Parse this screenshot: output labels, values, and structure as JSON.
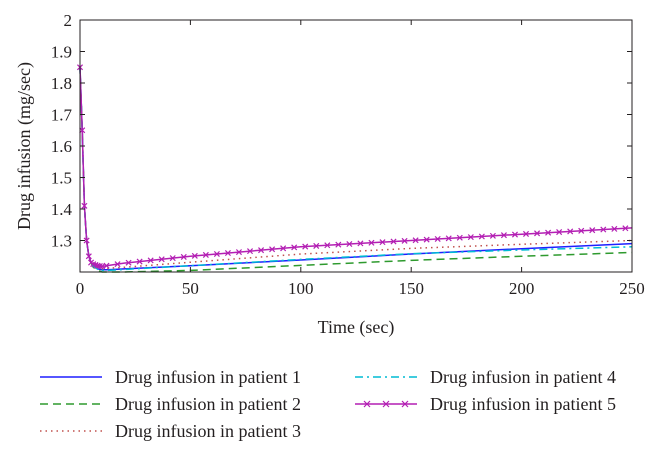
{
  "chart_data": {
    "type": "line",
    "title": "",
    "xlabel": "Time (sec)",
    "ylabel": "Drug infusion (mg/sec)",
    "xlim": [
      0,
      250
    ],
    "ylim": [
      1.2,
      2.0
    ],
    "xticks": [
      "0",
      "50",
      "100",
      "150",
      "200",
      "250"
    ],
    "yticks": [
      "1.3",
      "1.4",
      "1.5",
      "1.6",
      "1.7",
      "1.8",
      "1.9",
      "2"
    ],
    "grid": false,
    "legend_position": "bottom",
    "series": [
      {
        "name": "Drug infusion in patient 1",
        "color": "#1f1fff",
        "style": "solid",
        "x": [
          0,
          1,
          2,
          3,
          4,
          5,
          6,
          8,
          10,
          12,
          15,
          20,
          50,
          100,
          150,
          200,
          250
        ],
        "y": [
          1.85,
          1.65,
          1.41,
          1.3,
          1.25,
          1.23,
          1.22,
          1.21,
          1.207,
          1.207,
          1.208,
          1.21,
          1.22,
          1.238,
          1.257,
          1.274,
          1.29
        ]
      },
      {
        "name": "Drug infusion in patient 2",
        "color": "#2e9a2e",
        "style": "dashed",
        "x": [
          0,
          1,
          2,
          3,
          4,
          5,
          6,
          8,
          10,
          12,
          15,
          20,
          50,
          100,
          150,
          200,
          250
        ],
        "y": [
          1.85,
          1.65,
          1.41,
          1.3,
          1.25,
          1.23,
          1.215,
          1.205,
          1.2,
          1.2,
          1.2,
          1.2,
          1.205,
          1.221,
          1.237,
          1.25,
          1.262
        ]
      },
      {
        "name": "Drug infusion in patient 3",
        "color": "#c0504d",
        "style": "dotted",
        "x": [
          0,
          1,
          2,
          3,
          4,
          5,
          6,
          8,
          10,
          12,
          15,
          20,
          50,
          100,
          150,
          200,
          250
        ],
        "y": [
          1.85,
          1.65,
          1.41,
          1.3,
          1.25,
          1.23,
          1.22,
          1.212,
          1.21,
          1.211,
          1.213,
          1.215,
          1.231,
          1.257,
          1.275,
          1.288,
          1.3
        ]
      },
      {
        "name": "Drug infusion in patient 4",
        "color": "#00bcd4",
        "style": "dashdot",
        "x": [
          0,
          1,
          2,
          3,
          4,
          5,
          6,
          8,
          10,
          12,
          15,
          20,
          50,
          100,
          150,
          200,
          250
        ],
        "y": [
          1.85,
          1.65,
          1.41,
          1.3,
          1.25,
          1.23,
          1.218,
          1.209,
          1.205,
          1.205,
          1.206,
          1.208,
          1.22,
          1.24,
          1.258,
          1.27,
          1.28
        ]
      },
      {
        "name": "Drug infusion in patient 5",
        "color": "#b31fb3",
        "style": "solid-x",
        "x": [
          0,
          1,
          2,
          3,
          4,
          5,
          6,
          8,
          10,
          12,
          15,
          20,
          50,
          100,
          150,
          200,
          250
        ],
        "y": [
          1.85,
          1.65,
          1.41,
          1.3,
          1.25,
          1.23,
          1.225,
          1.22,
          1.218,
          1.22,
          1.223,
          1.228,
          1.25,
          1.28,
          1.3,
          1.32,
          1.34
        ]
      }
    ]
  }
}
